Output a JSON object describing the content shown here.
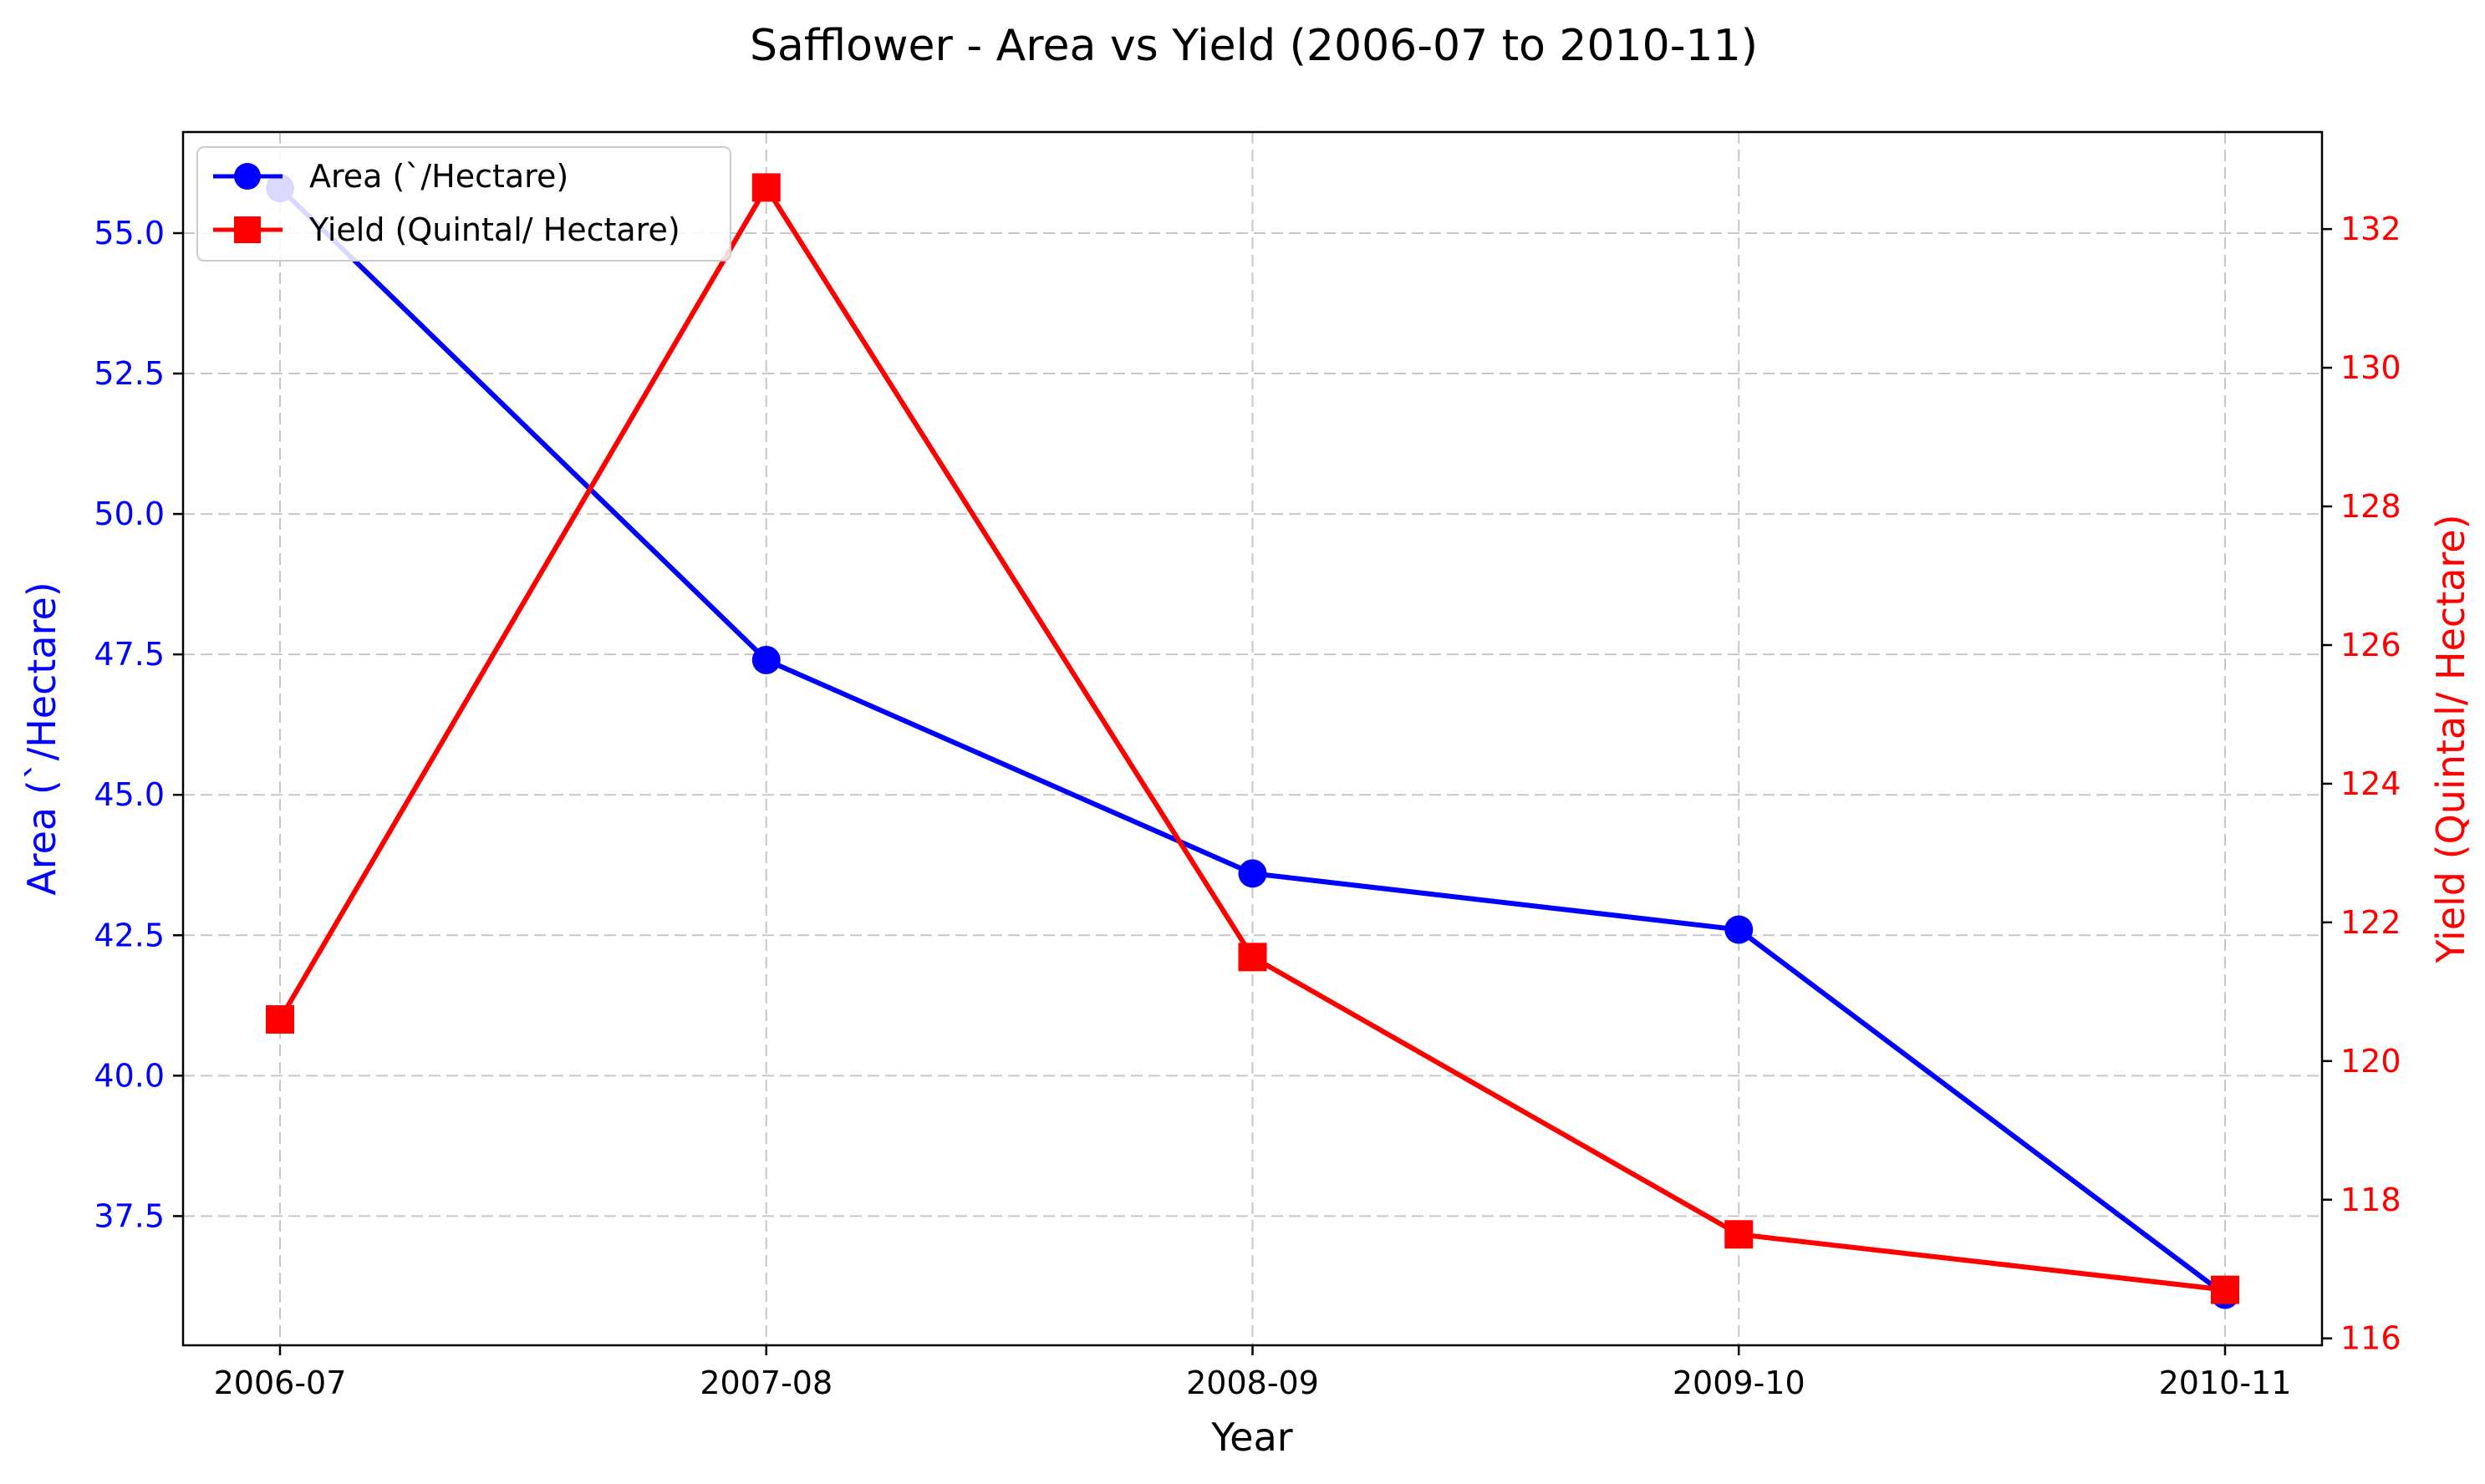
{
  "chart_data": {
    "type": "line",
    "title": "Safflower - Area vs Yield (2006-07 to 2010-11)",
    "xlabel": "Year",
    "ylabel_left": "Area (`/Hectare)",
    "ylabel_right": "Yield (Quintal/ Hectare)",
    "categories": [
      "2006-07",
      "2007-08",
      "2008-09",
      "2009-10",
      "2010-11"
    ],
    "left_axis": {
      "ylim": [
        35.2,
        56.8
      ],
      "ticks": [
        37.5,
        40.0,
        42.5,
        45.0,
        47.5,
        50.0,
        52.5,
        55.0
      ],
      "tick_labels": [
        "37.5",
        "40.0",
        "42.5",
        "45.0",
        "47.5",
        "50.0",
        "52.5",
        "55.0"
      ],
      "color": "#0000ff"
    },
    "right_axis": {
      "ylim": [
        115.9,
        133.4
      ],
      "ticks": [
        116,
        118,
        120,
        122,
        124,
        126,
        128,
        130,
        132
      ],
      "tick_labels": [
        "116",
        "118",
        "120",
        "122",
        "124",
        "126",
        "128",
        "130",
        "132"
      ],
      "color": "#ff0000"
    },
    "series": [
      {
        "name": "Area (`/Hectare)",
        "axis": "left",
        "marker": "circle",
        "color": "#0000ff",
        "values": [
          55.8,
          47.4,
          43.6,
          42.6,
          36.1
        ]
      },
      {
        "name": "Yield (Quintal/ Hectare)",
        "axis": "right",
        "marker": "square",
        "color": "#ff0000",
        "values": [
          120.6,
          132.6,
          121.5,
          117.5,
          116.7
        ]
      }
    ],
    "grid": true,
    "legend_position": "top-left"
  }
}
